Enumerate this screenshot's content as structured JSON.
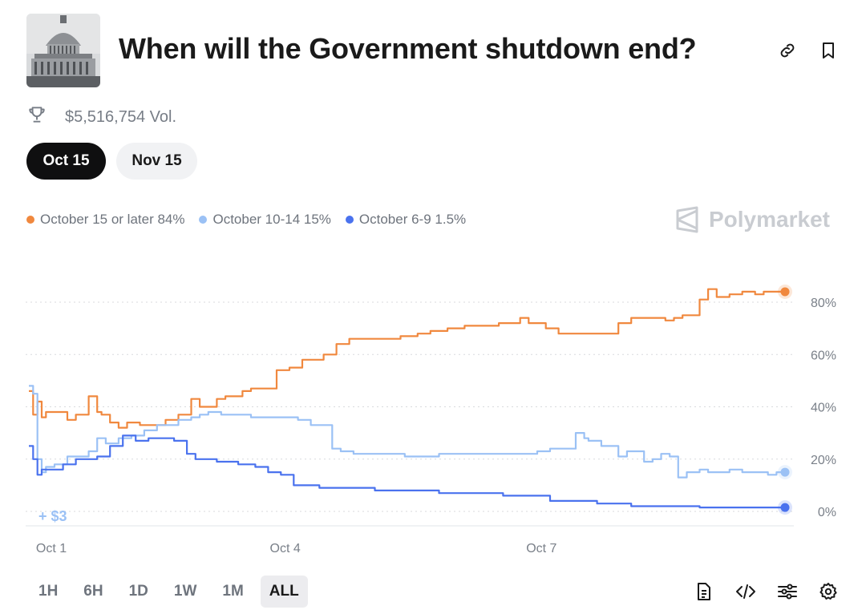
{
  "market": {
    "title": "When will the Government shutdown end?",
    "volume": "$5,516,754 Vol."
  },
  "tabs": [
    {
      "label": "Oct 15",
      "active": true
    },
    {
      "label": "Nov 15",
      "active": false
    }
  ],
  "legend": [
    {
      "label": "October 15 or later 84%",
      "color": "#f0883e"
    },
    {
      "label": "October 10-14 15%",
      "color": "#9bc1f5"
    },
    {
      "label": "October 6-9 1.5%",
      "color": "#4a72ee"
    }
  ],
  "brand": "Polymarket",
  "pnl_label": "+ $3",
  "time_ranges": [
    {
      "label": "1H",
      "active": false
    },
    {
      "label": "6H",
      "active": false
    },
    {
      "label": "1D",
      "active": false
    },
    {
      "label": "1W",
      "active": false
    },
    {
      "label": "1M",
      "active": false
    },
    {
      "label": "ALL",
      "active": true
    }
  ],
  "icons": {
    "link": "link-icon",
    "bookmark": "bookmark-icon",
    "trophy": "trophy-icon",
    "document": "document-icon",
    "code": "code-icon",
    "sliders": "sliders-icon",
    "settings": "gear-icon"
  },
  "chart_data": {
    "type": "line",
    "x_unit": "days since Oct 1",
    "xlim": [
      0,
      9.0
    ],
    "ylim": [
      0,
      80
    ],
    "y_ticks": [
      {
        "value": 0,
        "label": "0%"
      },
      {
        "value": 20,
        "label": "20%"
      },
      {
        "value": 40,
        "label": "40%"
      },
      {
        "value": 60,
        "label": "60%"
      },
      {
        "value": 80,
        "label": "80%"
      }
    ],
    "x_ticks": [
      {
        "value": 0,
        "label": "Oct 1"
      },
      {
        "value": 3,
        "label": "Oct 4"
      },
      {
        "value": 6,
        "label": "Oct 7"
      }
    ],
    "grid": true,
    "series": [
      {
        "name": "October 15 or later",
        "color": "#f0883e",
        "x": [
          0,
          0.05,
          0.1,
          0.15,
          0.2,
          0.3,
          0.45,
          0.55,
          0.7,
          0.8,
          0.85,
          0.95,
          1.05,
          1.15,
          1.3,
          1.5,
          1.6,
          1.75,
          1.9,
          2.0,
          2.2,
          2.3,
          2.5,
          2.6,
          2.75,
          2.9,
          3.05,
          3.2,
          3.3,
          3.45,
          3.6,
          3.75,
          3.9,
          4.05,
          4.2,
          4.35,
          4.55,
          4.7,
          4.9,
          5.1,
          5.3,
          5.5,
          5.75,
          5.85,
          6.05,
          6.2,
          6.35,
          6.5,
          6.6,
          6.75,
          6.9,
          7.05,
          7.25,
          7.35,
          7.45,
          7.55,
          7.65,
          7.75,
          7.85,
          7.95,
          8.05,
          8.2,
          8.35,
          8.5,
          8.6,
          8.75,
          8.85
        ],
        "y": [
          46,
          37,
          42,
          36,
          38,
          38,
          35,
          37,
          44,
          38,
          37,
          34,
          32,
          34,
          33,
          33,
          35,
          37,
          43,
          40,
          43,
          44,
          46,
          47,
          47,
          54,
          55,
          58,
          58,
          60,
          64,
          66,
          66,
          66,
          66,
          67,
          68,
          69,
          70,
          71,
          71,
          72,
          74,
          72,
          70,
          68,
          68,
          68,
          68,
          68,
          72,
          74,
          74,
          74,
          73,
          74,
          75,
          75,
          81,
          85,
          82,
          83,
          84,
          83,
          84,
          84,
          84
        ]
      },
      {
        "name": "October 10-14",
        "color": "#9bc1f5",
        "x": [
          0,
          0.05,
          0.1,
          0.15,
          0.2,
          0.3,
          0.45,
          0.55,
          0.7,
          0.8,
          0.9,
          1.05,
          1.2,
          1.35,
          1.5,
          1.6,
          1.75,
          1.9,
          2.0,
          2.1,
          2.25,
          2.4,
          2.6,
          2.8,
          3.0,
          3.15,
          3.3,
          3.45,
          3.55,
          3.65,
          3.8,
          4.0,
          4.2,
          4.4,
          4.6,
          4.8,
          5.0,
          5.2,
          5.4,
          5.6,
          5.8,
          5.95,
          6.1,
          6.25,
          6.4,
          6.5,
          6.55,
          6.7,
          6.9,
          7.0,
          7.1,
          7.2,
          7.3,
          7.4,
          7.5,
          7.6,
          7.7,
          7.85,
          7.95,
          8.05,
          8.2,
          8.35,
          8.5,
          8.65,
          8.75,
          8.85
        ],
        "y": [
          48,
          45,
          20,
          15,
          17,
          18,
          21,
          21,
          23,
          28,
          26,
          28,
          29,
          31,
          33,
          33,
          35,
          36,
          37,
          38,
          37,
          37,
          36,
          36,
          36,
          35,
          33,
          33,
          24,
          23,
          22,
          22,
          22,
          21,
          21,
          22,
          22,
          22,
          22,
          22,
          22,
          23,
          24,
          24,
          30,
          28,
          27,
          25,
          21,
          23,
          23,
          19,
          20,
          22,
          21,
          13,
          15,
          16,
          15,
          15,
          16,
          15,
          15,
          14,
          15,
          15
        ]
      },
      {
        "name": "October 6-9",
        "color": "#4a72ee",
        "x": [
          0,
          0.05,
          0.1,
          0.15,
          0.25,
          0.4,
          0.55,
          0.7,
          0.8,
          0.95,
          1.1,
          1.25,
          1.4,
          1.55,
          1.7,
          1.85,
          1.95,
          2.05,
          2.2,
          2.35,
          2.45,
          2.65,
          2.8,
          2.95,
          3.1,
          3.25,
          3.4,
          3.55,
          3.7,
          3.85,
          4.05,
          4.25,
          4.45,
          4.6,
          4.8,
          5.0,
          5.2,
          5.4,
          5.55,
          5.75,
          5.95,
          6.1,
          6.25,
          6.45,
          6.65,
          6.85,
          7.05,
          7.25,
          7.45,
          7.65,
          7.85,
          8.05,
          8.25,
          8.45,
          8.65,
          8.85
        ],
        "y": [
          25,
          20,
          14,
          16,
          16,
          18,
          20,
          20,
          21,
          25,
          29,
          27,
          28,
          28,
          27,
          22,
          20,
          20,
          19,
          19,
          18,
          17,
          15,
          14,
          10,
          10,
          9,
          9,
          9,
          9,
          8,
          8,
          8,
          8,
          7,
          7,
          7,
          7,
          6,
          6,
          6,
          4,
          4,
          4,
          3,
          3,
          2,
          2,
          2,
          2,
          1.5,
          1.5,
          1.5,
          1.5,
          1.5,
          1.5
        ]
      }
    ]
  }
}
